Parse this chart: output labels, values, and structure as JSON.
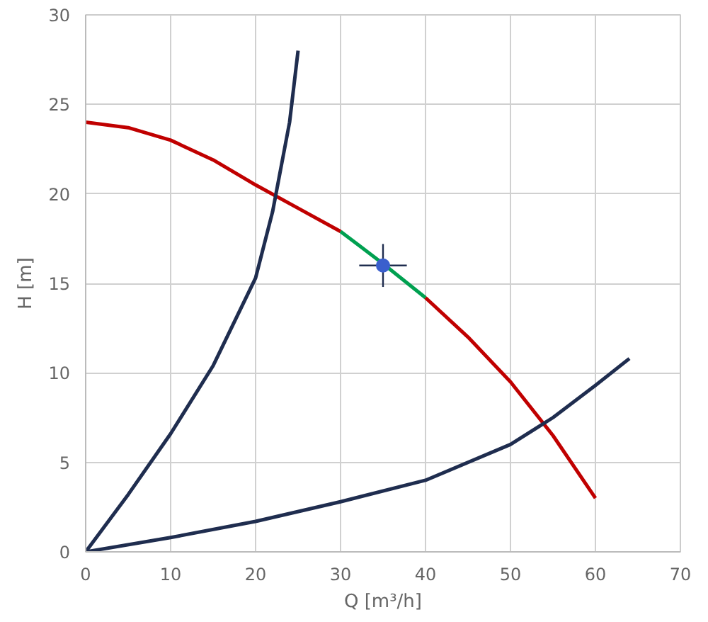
{
  "chart_data": {
    "type": "line",
    "xlabel": "Q [m³/h]",
    "ylabel": "H [m]",
    "xlim": [
      0,
      70
    ],
    "xticks": [
      0,
      10,
      20,
      30,
      40,
      50,
      60,
      70
    ],
    "ylim": [
      0,
      30
    ],
    "yticks": [
      0,
      5,
      10,
      15,
      20,
      25,
      30
    ],
    "grid": true,
    "line_style": "solid",
    "series": [
      {
        "color": "#c00000",
        "x": [
          0,
          5,
          10,
          15,
          20,
          25,
          30
        ],
        "values": [
          24,
          23.7,
          23,
          21.9,
          20.5,
          19.2,
          17.9
        ]
      },
      {
        "color": "#00a050",
        "x": [
          30,
          35,
          40
        ],
        "values": [
          17.9,
          16.1,
          14.2
        ]
      },
      {
        "color": "#c00000",
        "x": [
          40,
          45,
          50,
          55,
          60
        ],
        "values": [
          14.2,
          12,
          9.5,
          6.5,
          3
        ]
      },
      {
        "color": "#1f2d4f",
        "x": [
          0,
          5,
          10,
          15,
          20,
          22,
          24,
          25
        ],
        "values": [
          0,
          3.2,
          6.6,
          10.4,
          15.3,
          19,
          24,
          28
        ]
      },
      {
        "color": "#1f2d4f",
        "x": [
          0,
          10,
          20,
          30,
          40,
          50,
          55,
          60,
          64
        ],
        "values": [
          0,
          0.8,
          1.7,
          2.8,
          4,
          6,
          7.5,
          9.3,
          10.8
        ]
      },
      {
        "type": "scatter",
        "marker": "circle",
        "color": "#3a5fcd",
        "x": [
          35
        ],
        "values": [
          16
        ],
        "errors": [
          1.2
        ],
        "xerrors": [
          2.8
        ]
      }
    ]
  }
}
